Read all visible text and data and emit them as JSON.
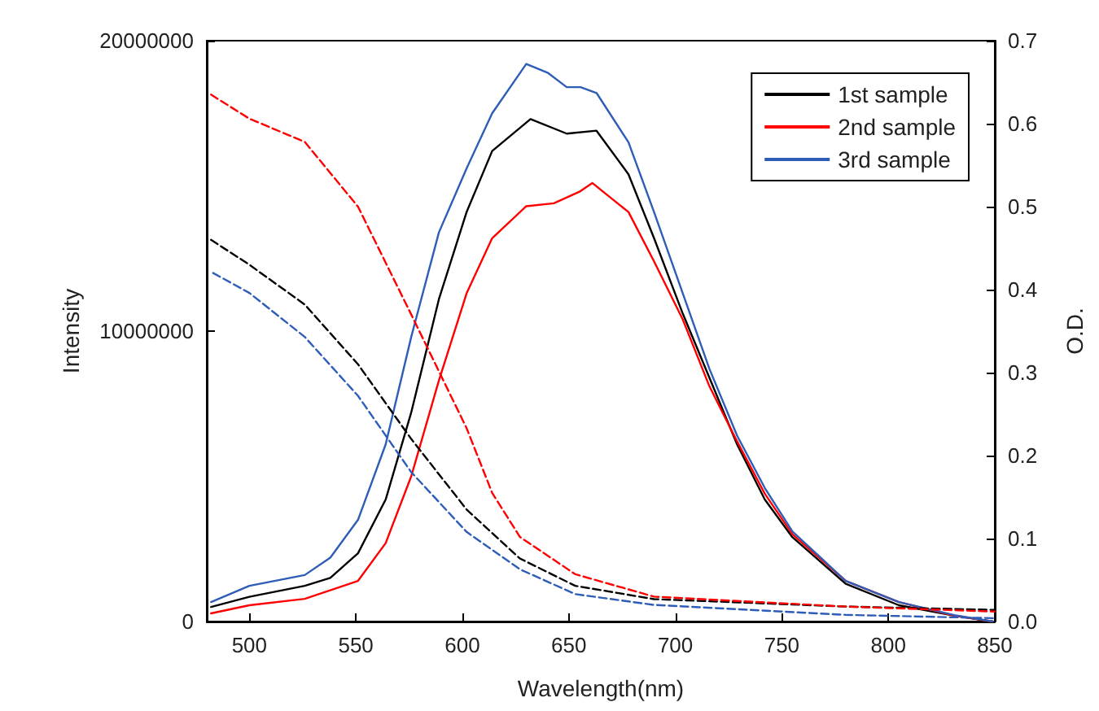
{
  "chart_data": {
    "type": "line",
    "xlabel": "Wavelength(nm)",
    "ylabel": "Intensity",
    "y2label": "O.D.",
    "xlim": [
      480,
      850
    ],
    "xticks": [
      500,
      550,
      600,
      650,
      700,
      750,
      800,
      850
    ],
    "ylim": [
      0,
      20000000
    ],
    "yticks": [
      0,
      10000000,
      20000000
    ],
    "y2lim": [
      0,
      0.7
    ],
    "y2ticks": [
      {
        "value": 0,
        "label": "0.0"
      },
      {
        "value": 0.1,
        "label": "0.1"
      },
      {
        "value": 0.2,
        "label": "0.2"
      },
      {
        "value": 0.3,
        "label": "0.3"
      },
      {
        "value": 0.4,
        "label": "0.4"
      },
      {
        "value": 0.5,
        "label": "0.5"
      },
      {
        "value": 0.6,
        "label": "0.6"
      },
      {
        "value": 0.7,
        "label": "0.7"
      }
    ],
    "legend": "top right",
    "marker": "none",
    "grid": false,
    "series": [
      {
        "name": "1st sample",
        "color": "#000000",
        "line_style": "solid",
        "x": [
          482,
          500,
          526,
          538,
          551,
          564,
          576,
          589,
          602,
          614,
          632,
          649,
          663,
          678,
          690,
          703.5,
          729,
          742,
          755,
          780,
          805,
          831,
          849
        ],
        "values": [
          500000,
          850000,
          1230000,
          1500000,
          2350000,
          4200000,
          7200000,
          11100000,
          14100000,
          16200000,
          17300000,
          16800000,
          16900000,
          15400000,
          13200000,
          10600000,
          6100000,
          4200000,
          2900000,
          1300000,
          560000,
          200000,
          0
        ]
      },
      {
        "name": "2nd sample",
        "color": "#ff0000",
        "line_style": "solid",
        "x": [
          482,
          500,
          526,
          551,
          564,
          576,
          589,
          602,
          614,
          630,
          643,
          655,
          661,
          678,
          690,
          703.5,
          716,
          729,
          742,
          755,
          780,
          805,
          831,
          849
        ],
        "values": [
          280000,
          560000,
          780000,
          1400000,
          2700000,
          5000000,
          8300000,
          11300000,
          13200000,
          14300000,
          14400000,
          14800000,
          15100000,
          14100000,
          12400000,
          10400000,
          8100000,
          6200000,
          4400000,
          3000000,
          1400000,
          670000,
          200000,
          0
        ]
      },
      {
        "name": "3rd sample",
        "color": "#2e5db8",
        "line_style": "solid",
        "x": [
          482,
          500,
          526,
          538,
          551,
          564,
          576,
          589,
          602,
          614,
          630,
          640,
          649,
          655.5,
          663,
          678,
          690,
          703.5,
          716,
          729,
          742,
          755,
          780,
          805,
          831,
          849
        ],
        "values": [
          670000,
          1230000,
          1600000,
          2200000,
          3500000,
          6100000,
          9800000,
          13400000,
          15600000,
          17500000,
          19200000,
          18900000,
          18400000,
          18400000,
          18200000,
          16500000,
          14100000,
          11300000,
          8700000,
          6400000,
          4600000,
          3100000,
          1400000,
          670000,
          220000,
          0
        ]
      },
      {
        "color": "#000000",
        "line_style": "dashed",
        "axis": "y2",
        "x": [
          482,
          500,
          526,
          551,
          576,
          602,
          627,
          653,
          690,
          780,
          850
        ],
        "values": [
          0.46,
          0.43,
          0.382,
          0.31,
          0.22,
          0.135,
          0.076,
          0.043,
          0.027,
          0.018,
          0.014
        ]
      },
      {
        "color": "#ff0000",
        "line_style": "dashed",
        "axis": "y2",
        "x": [
          482,
          500,
          526,
          551,
          576,
          602,
          614,
          627,
          653,
          690,
          780,
          850
        ],
        "values": [
          0.635,
          0.606,
          0.578,
          0.5,
          0.37,
          0.233,
          0.155,
          0.102,
          0.057,
          0.03,
          0.018,
          0.012
        ]
      },
      {
        "color": "#2e5db8",
        "line_style": "dashed",
        "axis": "y2",
        "x": [
          483,
          500,
          526,
          551,
          576,
          602,
          627,
          653,
          690,
          780,
          850
        ],
        "values": [
          0.42,
          0.396,
          0.343,
          0.272,
          0.18,
          0.108,
          0.063,
          0.033,
          0.02,
          0.008,
          0.004
        ]
      }
    ]
  }
}
